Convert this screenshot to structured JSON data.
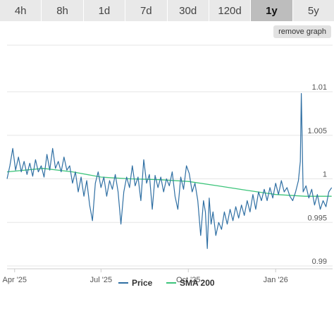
{
  "ranges": [
    {
      "label": "4h",
      "active": false
    },
    {
      "label": "8h",
      "active": false
    },
    {
      "label": "1d",
      "active": false
    },
    {
      "label": "7d",
      "active": false
    },
    {
      "label": "30d",
      "active": false
    },
    {
      "label": "120d",
      "active": false
    },
    {
      "label": "1y",
      "active": true
    },
    {
      "label": "5y",
      "active": false
    }
  ],
  "remove_graph_label": "remove graph",
  "chart_data": {
    "type": "line",
    "ylim": [
      0.99,
      1.01
    ],
    "y_ticks": [
      {
        "value": 0.99,
        "label": "0.99"
      },
      {
        "value": 0.995,
        "label": "0.995"
      },
      {
        "value": 1.0,
        "label": "1"
      },
      {
        "value": 1.005,
        "label": "1.005"
      },
      {
        "value": 1.01,
        "label": "1.01"
      }
    ],
    "x_range": [
      "2025-03-24",
      "2026-03-02"
    ],
    "x_ticks": [
      {
        "date": "2025-04-01",
        "label": "Apr '25"
      },
      {
        "date": "2025-07-01",
        "label": "Jul '25"
      },
      {
        "date": "2025-10-01",
        "label": "Oct '25"
      },
      {
        "date": "2026-01-01",
        "label": "Jan '26"
      }
    ],
    "grid": "horizontal",
    "legend_position": "bottom-center",
    "series": [
      {
        "name": "Price",
        "color": "#2f6fa3",
        "points": [
          [
            "2025-03-24",
            1.0
          ],
          [
            "2025-03-27",
            1.0015
          ],
          [
            "2025-03-30",
            1.0035
          ],
          [
            "2025-04-02",
            1.001
          ],
          [
            "2025-04-05",
            1.0025
          ],
          [
            "2025-04-08",
            1.0008
          ],
          [
            "2025-04-11",
            1.002
          ],
          [
            "2025-04-14",
            1.0005
          ],
          [
            "2025-04-17",
            1.0018
          ],
          [
            "2025-04-20",
            1.0003
          ],
          [
            "2025-04-23",
            1.0022
          ],
          [
            "2025-04-26",
            1.0008
          ],
          [
            "2025-04-29",
            1.0015
          ],
          [
            "2025-05-02",
            1.0002
          ],
          [
            "2025-05-05",
            1.0028
          ],
          [
            "2025-05-08",
            1.001
          ],
          [
            "2025-05-11",
            1.0035
          ],
          [
            "2025-05-14",
            1.0012
          ],
          [
            "2025-05-17",
            1.002
          ],
          [
            "2025-05-20",
            1.0008
          ],
          [
            "2025-05-23",
            1.0025
          ],
          [
            "2025-05-26",
            1.001
          ],
          [
            "2025-05-29",
            1.0015
          ],
          [
            "2025-06-01",
            0.9995
          ],
          [
            "2025-06-04",
            1.0008
          ],
          [
            "2025-06-07",
            0.9985
          ],
          [
            "2025-06-10",
            1.0002
          ],
          [
            "2025-06-13",
            0.998
          ],
          [
            "2025-06-16",
            0.9998
          ],
          [
            "2025-06-19",
            0.997
          ],
          [
            "2025-06-22",
            0.9952
          ],
          [
            "2025-06-25",
            0.9995
          ],
          [
            "2025-06-28",
            1.0008
          ],
          [
            "2025-07-01",
            0.999
          ],
          [
            "2025-07-04",
            1.0002
          ],
          [
            "2025-07-07",
            0.998
          ],
          [
            "2025-07-10",
            0.9998
          ],
          [
            "2025-07-13",
            0.9988
          ],
          [
            "2025-07-16",
            1.0005
          ],
          [
            "2025-07-19",
            0.9985
          ],
          [
            "2025-07-22",
            0.9948
          ],
          [
            "2025-07-25",
            0.9985
          ],
          [
            "2025-07-28",
            1.0002
          ],
          [
            "2025-07-31",
            0.999
          ],
          [
            "2025-08-03",
            1.0015
          ],
          [
            "2025-08-06",
            0.9992
          ],
          [
            "2025-08-09",
            1.0002
          ],
          [
            "2025-08-12",
            0.9975
          ],
          [
            "2025-08-15",
            1.0022
          ],
          [
            "2025-08-18",
            0.9995
          ],
          [
            "2025-08-21",
            1.0005
          ],
          [
            "2025-08-24",
            0.9965
          ],
          [
            "2025-08-27",
            1.0004
          ],
          [
            "2025-08-30",
            0.999
          ],
          [
            "2025-09-02",
            1.0002
          ],
          [
            "2025-09-05",
            0.9985
          ],
          [
            "2025-09-08",
            1.0
          ],
          [
            "2025-09-11",
            0.9992
          ],
          [
            "2025-09-14",
            1.0008
          ],
          [
            "2025-09-17",
            0.998
          ],
          [
            "2025-09-20",
            0.9965
          ],
          [
            "2025-09-23",
            1.0002
          ],
          [
            "2025-09-26",
            0.9988
          ],
          [
            "2025-09-29",
            1.0015
          ],
          [
            "2025-10-02",
            1.0006
          ],
          [
            "2025-10-05",
            0.9985
          ],
          [
            "2025-10-08",
            0.9995
          ],
          [
            "2025-10-11",
            0.9975
          ],
          [
            "2025-10-14",
            0.9935
          ],
          [
            "2025-10-17",
            0.9975
          ],
          [
            "2025-10-19",
            0.9962
          ],
          [
            "2025-10-21",
            0.992
          ],
          [
            "2025-10-23",
            0.9978
          ],
          [
            "2025-10-25",
            0.9948
          ],
          [
            "2025-10-27",
            0.9962
          ],
          [
            "2025-10-30",
            0.9935
          ],
          [
            "2025-11-02",
            0.995
          ],
          [
            "2025-11-05",
            0.9942
          ],
          [
            "2025-11-08",
            0.9962
          ],
          [
            "2025-11-11",
            0.9948
          ],
          [
            "2025-11-14",
            0.9965
          ],
          [
            "2025-11-17",
            0.9952
          ],
          [
            "2025-11-20",
            0.9968
          ],
          [
            "2025-11-23",
            0.9955
          ],
          [
            "2025-11-26",
            0.997
          ],
          [
            "2025-11-29",
            0.9958
          ],
          [
            "2025-12-02",
            0.9975
          ],
          [
            "2025-12-05",
            0.9962
          ],
          [
            "2025-12-08",
            0.9982
          ],
          [
            "2025-12-11",
            0.9965
          ],
          [
            "2025-12-14",
            0.9985
          ],
          [
            "2025-12-17",
            0.9975
          ],
          [
            "2025-12-20",
            0.9988
          ],
          [
            "2025-12-23",
            0.9975
          ],
          [
            "2025-12-26",
            0.999
          ],
          [
            "2025-12-29",
            0.9978
          ],
          [
            "2026-01-01",
            0.9995
          ],
          [
            "2026-01-04",
            0.9982
          ],
          [
            "2026-01-07",
            0.9998
          ],
          [
            "2026-01-10",
            0.9985
          ],
          [
            "2026-01-13",
            0.999
          ],
          [
            "2026-01-16",
            0.998
          ],
          [
            "2026-01-19",
            0.9975
          ],
          [
            "2026-01-22",
            0.9985
          ],
          [
            "2026-01-25",
            0.9998
          ],
          [
            "2026-01-27",
            1.002
          ],
          [
            "2026-01-28",
            1.0098
          ],
          [
            "2026-01-30",
            0.9985
          ],
          [
            "2026-02-02",
            0.9992
          ],
          [
            "2026-02-05",
            0.9978
          ],
          [
            "2026-02-08",
            0.9988
          ],
          [
            "2026-02-11",
            0.997
          ],
          [
            "2026-02-14",
            0.9982
          ],
          [
            "2026-02-17",
            0.9965
          ],
          [
            "2026-02-20",
            0.9975
          ],
          [
            "2026-02-23",
            0.9968
          ],
          [
            "2026-02-26",
            0.9985
          ],
          [
            "2026-03-01",
            0.999
          ]
        ]
      },
      {
        "name": "SMA 200",
        "color": "#3cc47a",
        "points": [
          [
            "2025-03-24",
            1.0008
          ],
          [
            "2025-05-01",
            1.0012
          ],
          [
            "2025-06-01",
            1.0008
          ],
          [
            "2025-07-01",
            1.0002
          ],
          [
            "2025-08-01",
            1.0
          ],
          [
            "2025-09-01",
            0.9999
          ],
          [
            "2025-10-01",
            0.9997
          ],
          [
            "2025-11-01",
            0.9992
          ],
          [
            "2025-12-01",
            0.9987
          ],
          [
            "2026-01-01",
            0.9982
          ],
          [
            "2026-02-01",
            0.998
          ],
          [
            "2026-03-01",
            0.998
          ]
        ]
      }
    ]
  }
}
